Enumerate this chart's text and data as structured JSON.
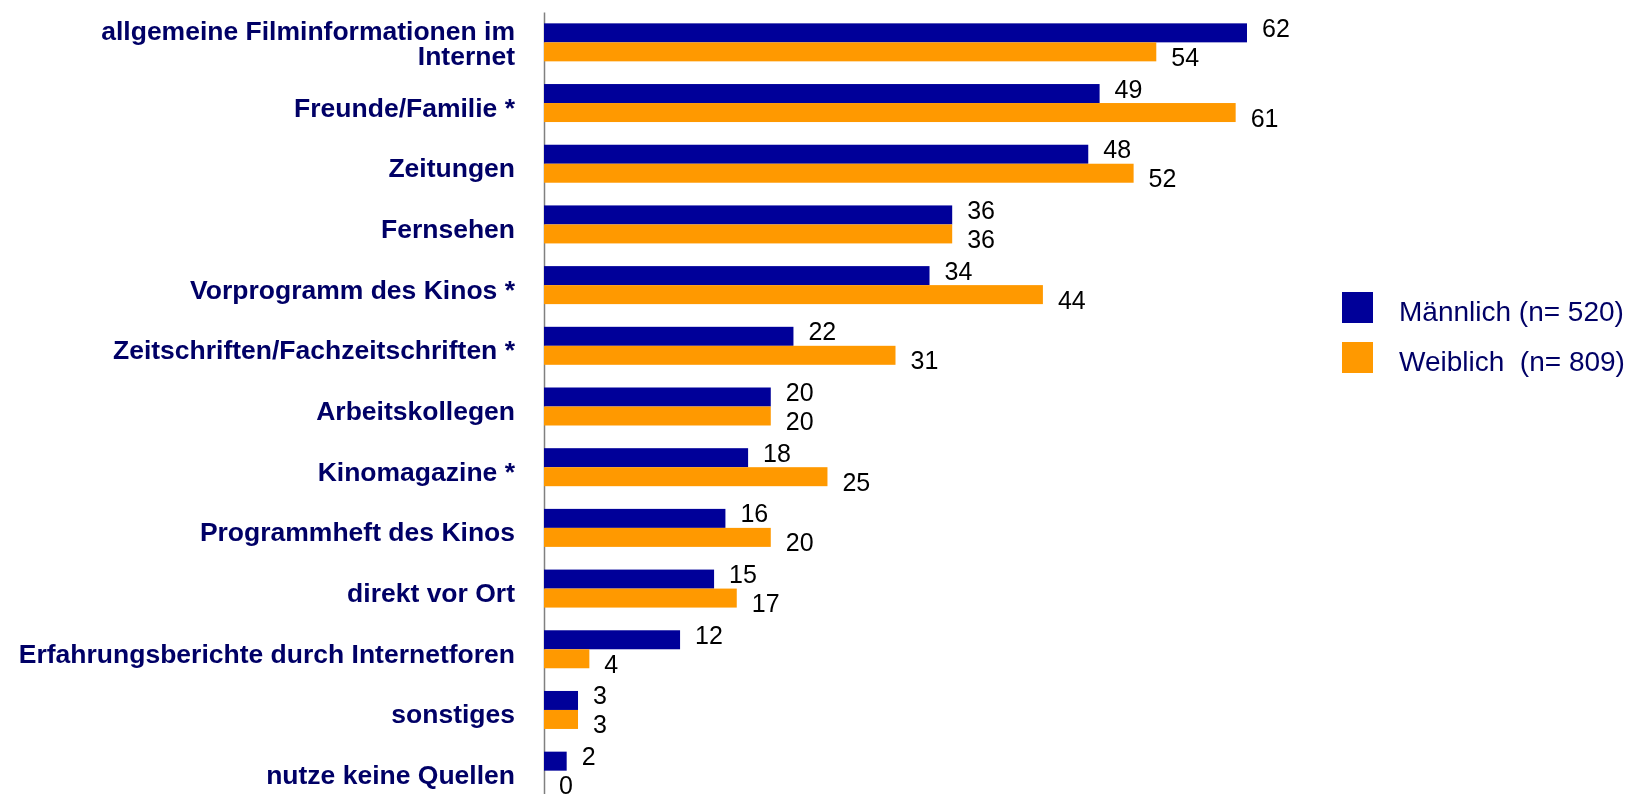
{
  "chart_data": {
    "type": "bar",
    "orientation": "horizontal",
    "categories": [
      "allgemeine Filminformationen im Internet",
      "Freunde/Familie *",
      "Zeitungen",
      "Fernsehen",
      "Vorprogramm des Kinos *",
      "Zeitschriften/Fachzeitschriften *",
      "Arbeitskollegen",
      "Kinomagazine *",
      "Programmheft des Kinos",
      "direkt vor Ort",
      "Erfahrungsberichte durch Internetforen",
      "sonstiges",
      "nutze keine Quellen"
    ],
    "series": [
      {
        "name": "Männlich (n= 520)",
        "color": "#000099",
        "values": [
          62,
          49,
          48,
          36,
          34,
          22,
          20,
          18,
          16,
          15,
          12,
          3,
          2
        ]
      },
      {
        "name": "Weiblich  (n= 809)",
        "color": "#ff9900",
        "values": [
          54,
          61,
          52,
          36,
          44,
          31,
          20,
          25,
          20,
          17,
          4,
          3,
          0
        ]
      }
    ],
    "data_labels": true,
    "legend": "right"
  }
}
